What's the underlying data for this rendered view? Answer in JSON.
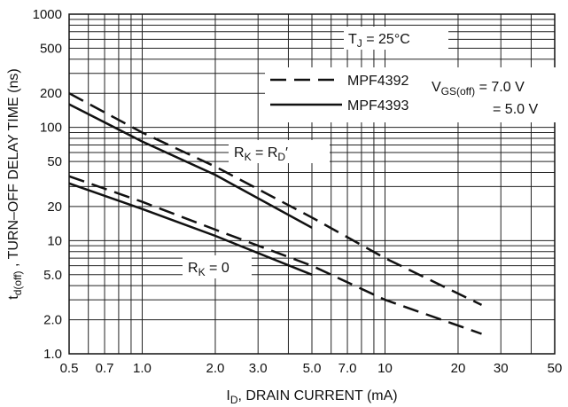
{
  "chart_data": {
    "type": "line",
    "title": "",
    "xlabel": {
      "prefix": "I",
      "sub": "D",
      "suffix": ", DRAIN CURRENT (mA)"
    },
    "ylabel": {
      "prefix": "t",
      "sub": "d(off)",
      "suffix": " , TURN–OFF DELAY TIME (ns)"
    },
    "x_scale": "log",
    "y_scale": "log",
    "xlim": [
      0.5,
      50
    ],
    "ylim": [
      1.0,
      1000
    ],
    "grid": true,
    "x_ticks": [
      {
        "v": 0.5,
        "label": "0.5"
      },
      {
        "v": 0.7,
        "label": "0.7"
      },
      {
        "v": 1.0,
        "label": "1.0"
      },
      {
        "v": 2.0,
        "label": "2.0"
      },
      {
        "v": 3.0,
        "label": "3.0"
      },
      {
        "v": 5.0,
        "label": "5.0"
      },
      {
        "v": 7.0,
        "label": "7.0"
      },
      {
        "v": 10,
        "label": "10"
      },
      {
        "v": 20,
        "label": "20"
      },
      {
        "v": 30,
        "label": "30"
      },
      {
        "v": 50,
        "label": "50"
      }
    ],
    "y_ticks": [
      {
        "v": 1.0,
        "label": "1.0"
      },
      {
        "v": 2.0,
        "label": "2.0"
      },
      {
        "v": 5.0,
        "label": "5.0"
      },
      {
        "v": 10,
        "label": "10"
      },
      {
        "v": 20,
        "label": "20"
      },
      {
        "v": 50,
        "label": "50"
      },
      {
        "v": 100,
        "label": "100"
      },
      {
        "v": 200,
        "label": "200"
      },
      {
        "v": 500,
        "label": "500"
      },
      {
        "v": 1000,
        "label": "1000"
      }
    ],
    "x_grid": [
      0.5,
      0.6,
      0.7,
      0.8,
      0.9,
      1,
      2,
      3,
      4,
      5,
      6,
      7,
      8,
      9,
      10,
      20,
      30,
      40,
      50
    ],
    "y_grid": [
      1,
      2,
      3,
      4,
      5,
      6,
      7,
      8,
      9,
      10,
      20,
      30,
      40,
      50,
      60,
      70,
      80,
      90,
      100,
      200,
      300,
      400,
      500,
      600,
      700,
      800,
      900,
      1000
    ],
    "series": [
      {
        "device": "MPF4392",
        "style": "dashed",
        "condition": "RK=RD",
        "x": [
          0.5,
          1.0,
          2.0,
          5.0,
          10,
          25
        ],
        "y": [
          200,
          90,
          45,
          16,
          7,
          2.7
        ]
      },
      {
        "device": "MPF4393",
        "style": "solid",
        "condition": "RK=RD",
        "x": [
          0.5,
          1.0,
          2.0,
          5.0
        ],
        "y": [
          160,
          75,
          38,
          13
        ]
      },
      {
        "device": "MPF4392",
        "style": "dashed",
        "condition": "RK=0",
        "x": [
          0.5,
          1.0,
          2.0,
          5.0,
          10,
          25
        ],
        "y": [
          37,
          22,
          12.5,
          6,
          3,
          1.5
        ]
      },
      {
        "device": "MPF4393",
        "style": "solid",
        "condition": "RK=0",
        "x": [
          0.5,
          1.0,
          2.0,
          5.0
        ],
        "y": [
          32,
          19,
          11,
          5
        ]
      }
    ],
    "legend": {
      "placement": "top-right",
      "entries": [
        {
          "name": "MPF4392",
          "style": "dashed"
        },
        {
          "name": "MPF4393",
          "style": "solid"
        }
      ],
      "vgs_label": {
        "prefix": "V",
        "sub": "GS(off)",
        "suffix": " = 7.0 V"
      },
      "vgs_second": "= 5.0 V"
    },
    "annotations": {
      "tj": {
        "prefix": "T",
        "sub": "J",
        "suffix": " = 25°C"
      },
      "rk_rd": {
        "prefix": "R",
        "sub": "K",
        "mid": " = R",
        "sub2": "D",
        "suffix": "′"
      },
      "rk_zero": {
        "prefix": "R",
        "sub": "K",
        "suffix": " = 0"
      }
    },
    "colors": {
      "line": "#111111",
      "grid": "#222222",
      "background": "#ffffff"
    }
  }
}
